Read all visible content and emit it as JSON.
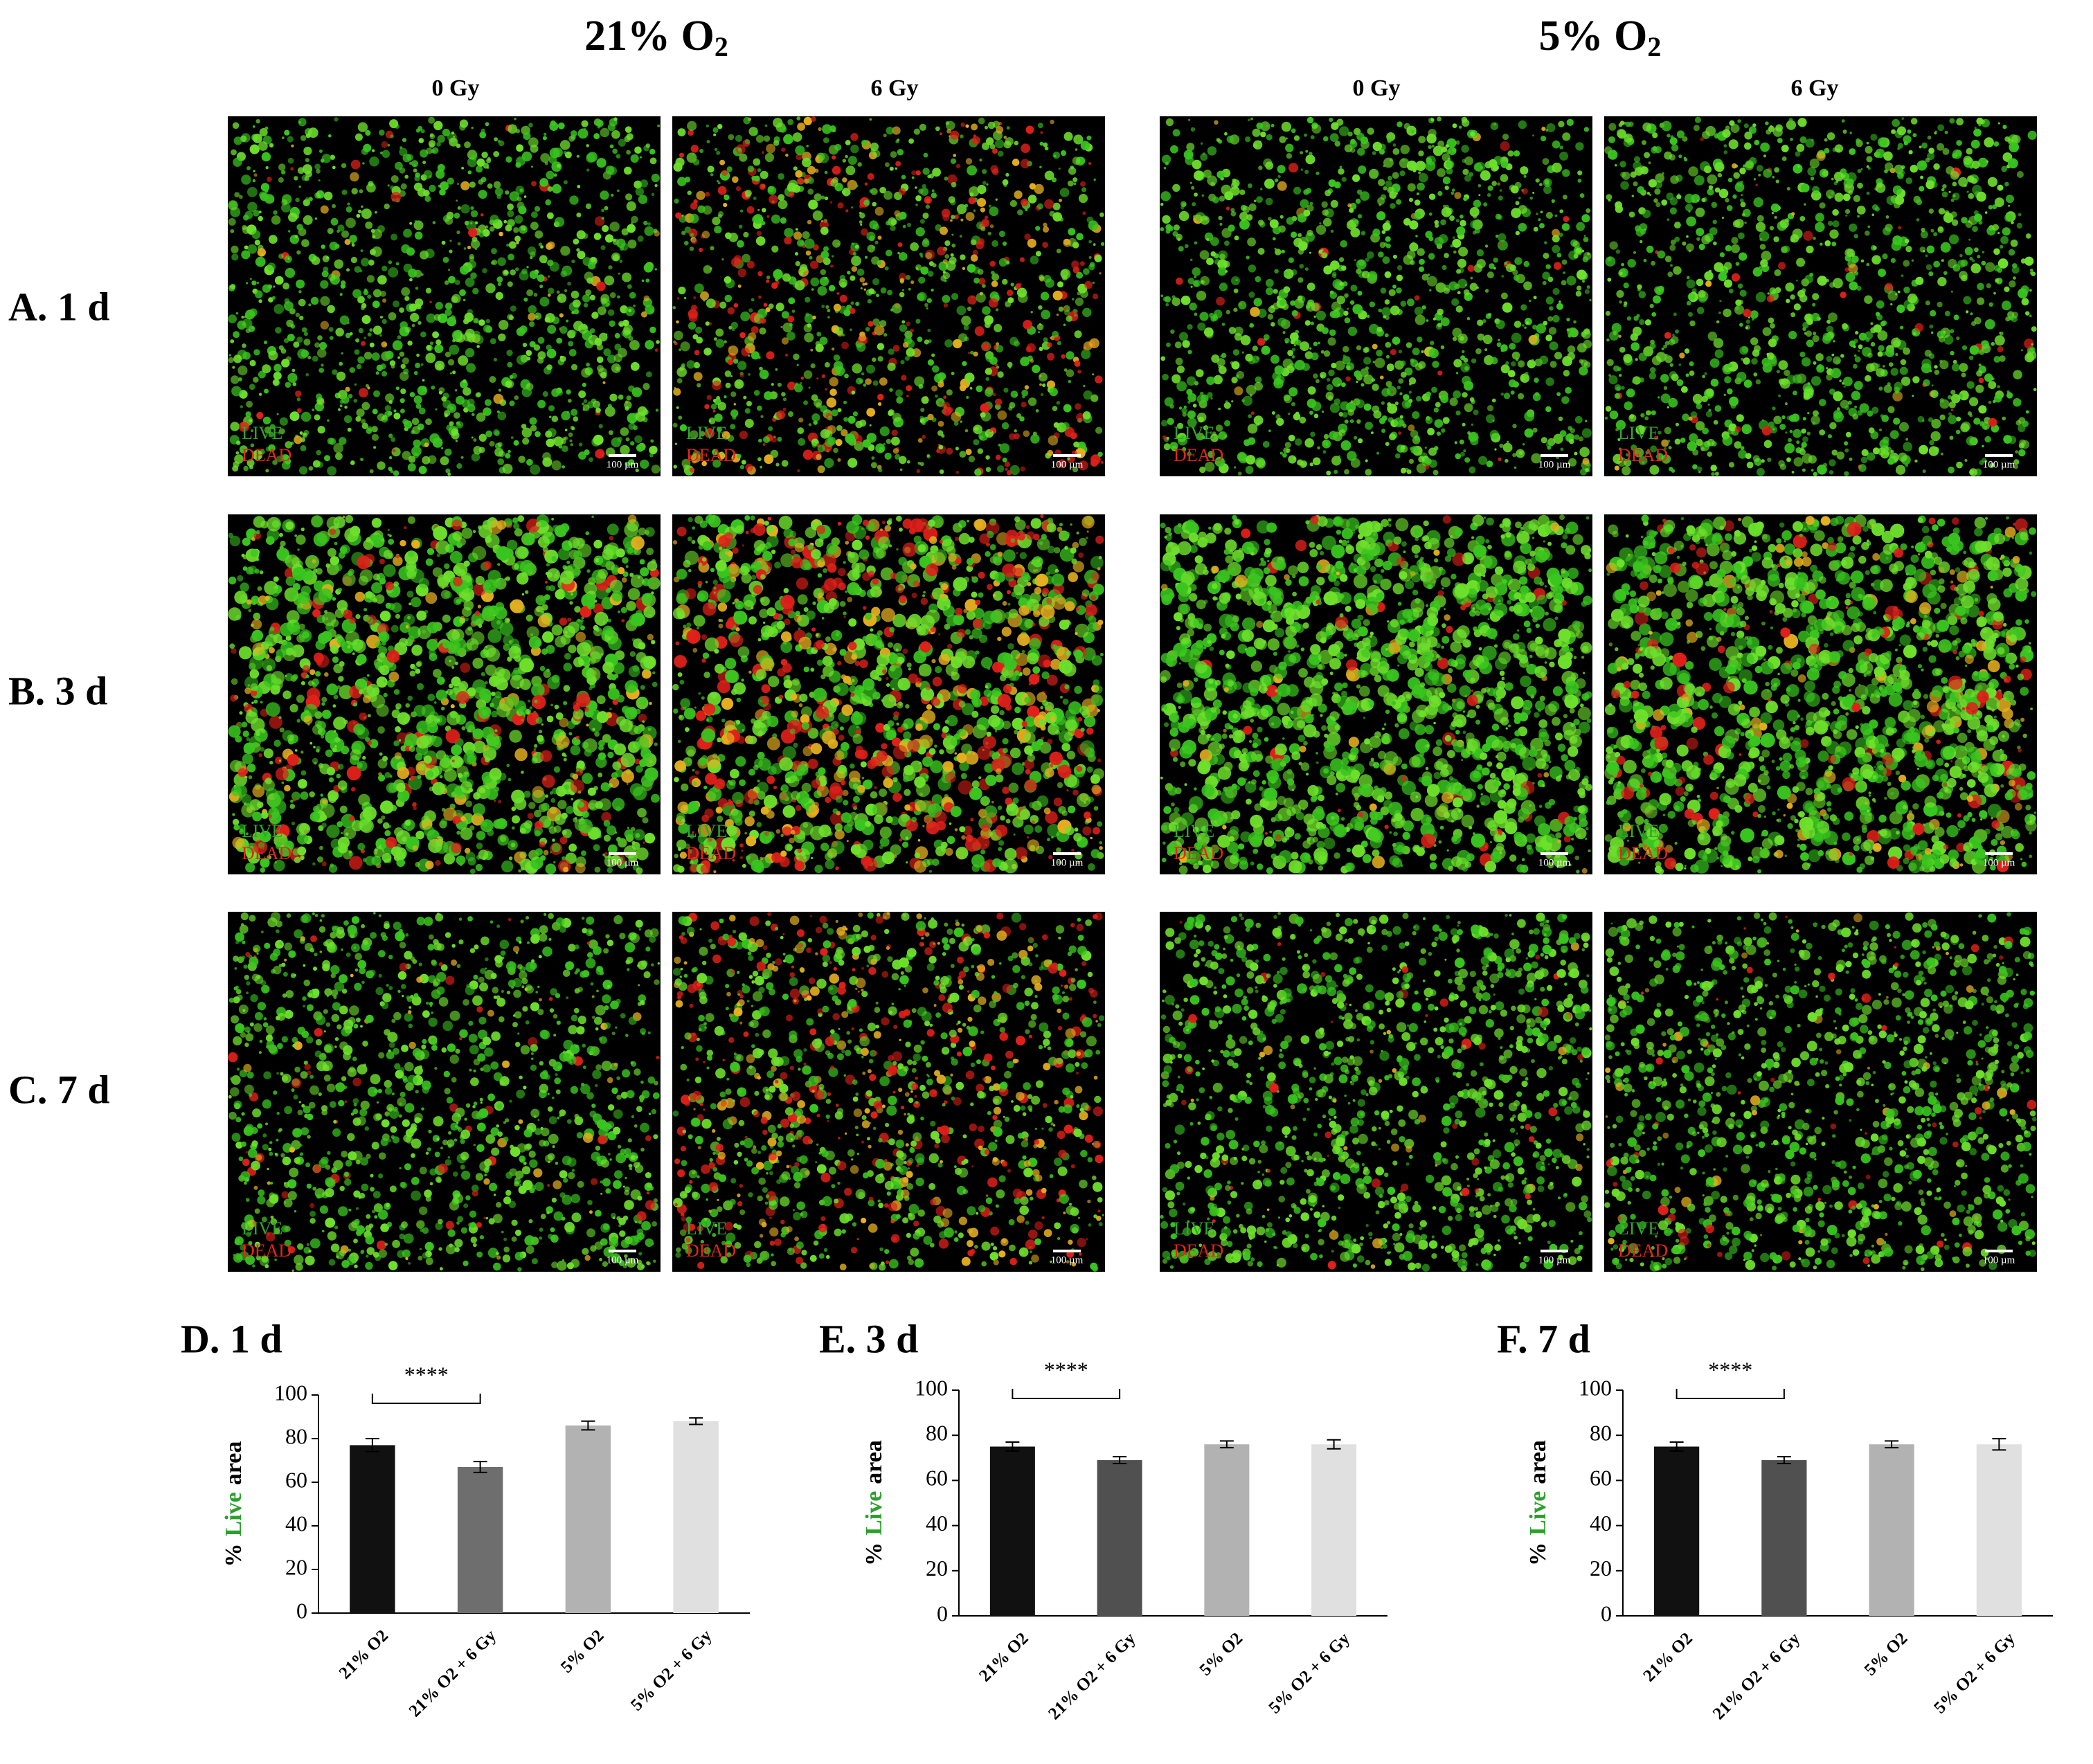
{
  "oxygen_groups": [
    {
      "label": "21% O",
      "subscript": "2",
      "doses": [
        "0 Gy",
        "6 Gy"
      ]
    },
    {
      "label": "5% O",
      "subscript": "2",
      "doses": [
        "0 Gy",
        "6 Gy"
      ]
    }
  ],
  "rows": [
    "A. 1 d",
    "B. 3 d",
    "C. 7 d"
  ],
  "image_overlay": {
    "live": "LIVE",
    "dead": "DEAD",
    "scale_bar": "100 µm"
  },
  "chart_data": [
    {
      "type": "bar",
      "title": "D. 1 d",
      "ylabel": {
        "prefix": "%",
        "highlight": "Live",
        "suffix": "area",
        "highlight_color": "#2ca02c"
      },
      "categories": [
        "21% O2",
        "21% O2 + 6 Gy",
        "5% O2",
        "5% O2 + 6 Gy"
      ],
      "values": [
        77,
        67,
        86,
        88
      ],
      "errors": [
        3,
        2.5,
        2,
        1.5
      ],
      "colors": [
        "#111111",
        "#6e6e6e",
        "#b2b2b2",
        "#e0e0e0"
      ],
      "ylim": [
        0,
        100
      ],
      "yticks": [
        0,
        20,
        40,
        60,
        80,
        100
      ],
      "significance": {
        "pair": [
          0,
          1
        ],
        "label": "****"
      }
    },
    {
      "type": "bar",
      "title": "E. 3 d",
      "ylabel": {
        "prefix": "%",
        "highlight": "Live",
        "suffix": "area",
        "highlight_color": "#2ca02c"
      },
      "categories": [
        "21% O2",
        "21% O2 + 6 Gy",
        "5% O2",
        "5% O2 + 6 Gy"
      ],
      "values": [
        75,
        69,
        76,
        76
      ],
      "errors": [
        2,
        1.5,
        1.5,
        2
      ],
      "colors": [
        "#111111",
        "#505050",
        "#b2b2b2",
        "#e0e0e0"
      ],
      "ylim": [
        0,
        100
      ],
      "yticks": [
        0,
        20,
        40,
        60,
        80,
        100
      ],
      "significance": {
        "pair": [
          0,
          1
        ],
        "label": "****"
      }
    },
    {
      "type": "bar",
      "title": "F. 7 d",
      "ylabel": {
        "prefix": "%",
        "highlight": "Live",
        "suffix": "area",
        "highlight_color": "#2ca02c"
      },
      "categories": [
        "21% O2",
        "21% O2 + 6 Gy",
        "5% O2",
        "5% O2 + 6 Gy"
      ],
      "values": [
        75,
        69,
        76,
        76
      ],
      "errors": [
        2,
        1.5,
        1.5,
        2.5
      ],
      "colors": [
        "#111111",
        "#505050",
        "#b2b2b2",
        "#e0e0e0"
      ],
      "ylim": [
        0,
        100
      ],
      "yticks": [
        0,
        20,
        40,
        60,
        80,
        100
      ],
      "significance": {
        "pair": [
          0,
          1
        ],
        "label": "****"
      }
    }
  ]
}
